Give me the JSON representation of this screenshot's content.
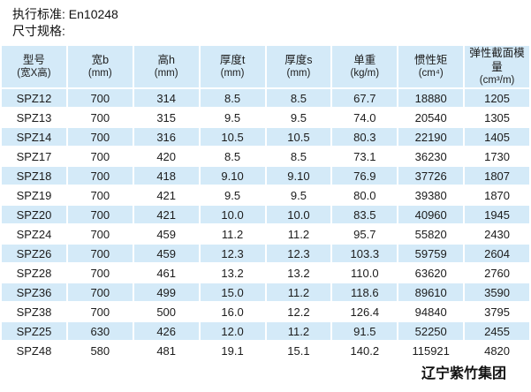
{
  "page": {
    "standard_line": "执行标准: En10248",
    "spec_line": "尺寸规格:",
    "footer_company": "辽宁紫竹集团"
  },
  "colors": {
    "row_stripe_blue": "#d4eaf8",
    "background": "#ffffff",
    "text": "#1c1c1c"
  },
  "table": {
    "columns": [
      {
        "label": "型号",
        "unit": "(宽X高)"
      },
      {
        "label": "宽b",
        "unit": "(mm)"
      },
      {
        "label": "高h",
        "unit": "(mm)"
      },
      {
        "label": "厚度t",
        "unit": "(mm)"
      },
      {
        "label": "厚度s",
        "unit": "(mm)"
      },
      {
        "label": "单重",
        "unit": "(kg/m)"
      },
      {
        "label": "惯性矩",
        "unit": "(cm⁴)"
      },
      {
        "label": "弹性截面模量",
        "unit": "(cm³/m)"
      }
    ],
    "rows": [
      [
        "SPZ12",
        "700",
        "314",
        "8.5",
        "8.5",
        "67.7",
        "18880",
        "1205"
      ],
      [
        "SPZ13",
        "700",
        "315",
        "9.5",
        "9.5",
        "74.0",
        "20540",
        "1305"
      ],
      [
        "SPZ14",
        "700",
        "316",
        "10.5",
        "10.5",
        "80.3",
        "22190",
        "1405"
      ],
      [
        "SPZ17",
        "700",
        "420",
        "8.5",
        "8.5",
        "73.1",
        "36230",
        "1730"
      ],
      [
        "SPZ18",
        "700",
        "418",
        "9.10",
        "9.10",
        "76.9",
        "37726",
        "1807"
      ],
      [
        "SPZ19",
        "700",
        "421",
        "9.5",
        "9.5",
        "80.0",
        "39380",
        "1870"
      ],
      [
        "SPZ20",
        "700",
        "421",
        "10.0",
        "10.0",
        "83.5",
        "40960",
        "1945"
      ],
      [
        "SPZ24",
        "700",
        "459",
        "11.2",
        "11.2",
        "95.7",
        "55820",
        "2430"
      ],
      [
        "SPZ26",
        "700",
        "459",
        "12.3",
        "12.3",
        "103.3",
        "59759",
        "2604"
      ],
      [
        "SPZ28",
        "700",
        "461",
        "13.2",
        "13.2",
        "110.0",
        "63620",
        "2760"
      ],
      [
        "SPZ36",
        "700",
        "499",
        "15.0",
        "11.2",
        "118.6",
        "89610",
        "3590"
      ],
      [
        "SPZ38",
        "700",
        "500",
        "16.0",
        "12.2",
        "126.4",
        "94840",
        "3795"
      ],
      [
        "SPZ25",
        "630",
        "426",
        "12.0",
        "11.2",
        "91.5",
        "52250",
        "2455"
      ],
      [
        "SPZ48",
        "580",
        "481",
        "19.1",
        "15.1",
        "140.2",
        "115921",
        "4820"
      ]
    ]
  }
}
